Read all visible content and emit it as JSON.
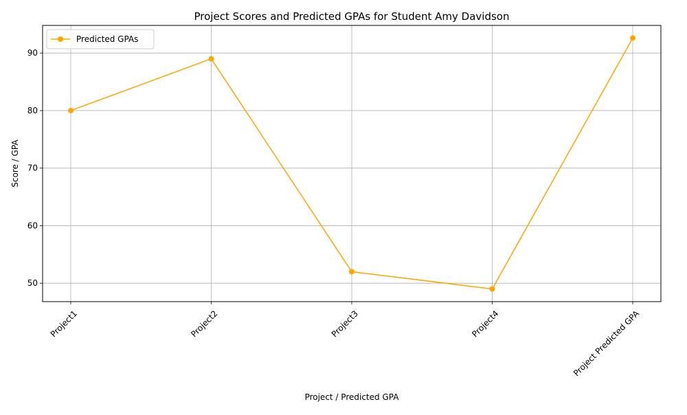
{
  "chart_data": {
    "type": "line",
    "title": "Project Scores and Predicted GPAs for Student Amy Davidson",
    "xlabel": "Project / Predicted GPA",
    "ylabel": "Score / GPA",
    "categories": [
      "Project1",
      "Project2",
      "Project3",
      "Project4",
      "Project Predicted GPA"
    ],
    "series": [
      {
        "name": "Predicted GPAs",
        "values": [
          80,
          89,
          52,
          49,
          92.6
        ],
        "color": "#ffa500",
        "marker": "circle"
      }
    ],
    "ylim": [
      46.8,
      94.8
    ],
    "yticks": [
      50,
      60,
      70,
      80,
      90
    ],
    "grid": true,
    "legend_position": "top-left",
    "xtick_rotation": "45 degrees"
  }
}
